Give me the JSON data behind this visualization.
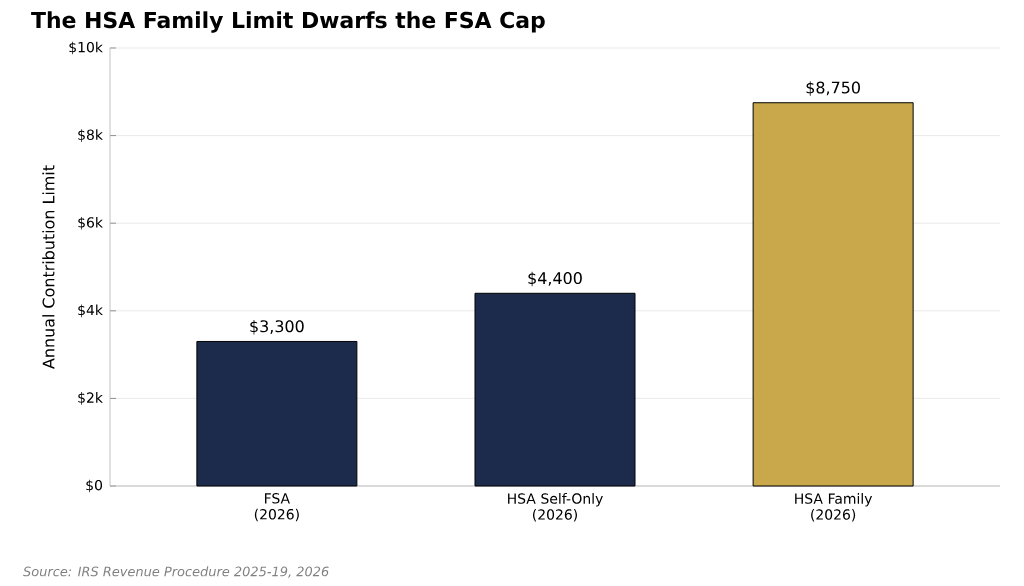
{
  "chart_data": {
    "type": "bar",
    "title": "The HSA Family Limit Dwarfs the FSA Cap",
    "ylabel": "Annual Contribution Limit",
    "categories": [
      "FSA\n(2026)",
      "HSA Self-Only\n(2026)",
      "HSA Family\n(2026)"
    ],
    "values": [
      3300,
      4400,
      8750
    ],
    "colors": [
      "#1c2a4b",
      "#1c2a4b",
      "#c9a84b"
    ],
    "value_labels": [
      "$3,300",
      "$4,400",
      "$8,750"
    ],
    "ylim": [
      0,
      10000
    ],
    "yticks": [
      {
        "value": 0,
        "label": "$0"
      },
      {
        "value": 2000,
        "label": "$2k"
      },
      {
        "value": 4000,
        "label": "$4k"
      },
      {
        "value": 6000,
        "label": "$6k"
      },
      {
        "value": 8000,
        "label": "$8k"
      },
      {
        "value": 10000,
        "label": "$10k"
      }
    ],
    "grid": "y",
    "annotations": [
      "Source: IRS Revenue Procedure 2025-19, 2026"
    ]
  }
}
